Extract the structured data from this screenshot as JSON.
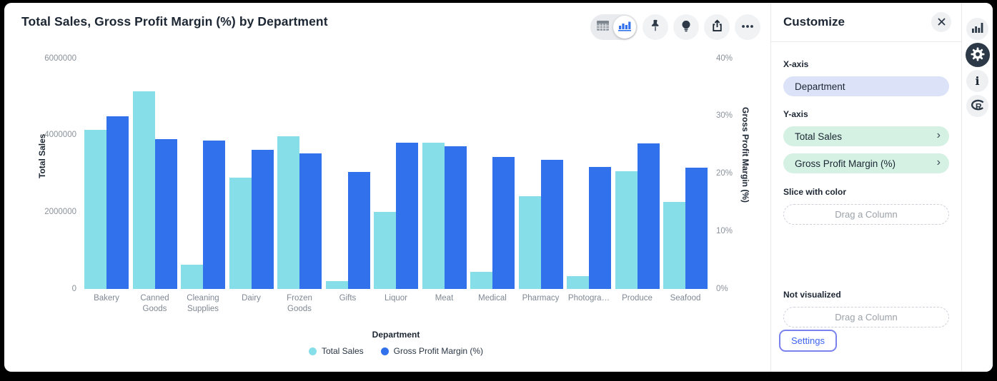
{
  "chart": {
    "title": "Total Sales, Gross Profit Margin (%) by Department",
    "toolbar": {
      "table_toggle_icon": "table-icon",
      "chart_toggle_icon": "bar-chart-icon",
      "selected_view": "chart",
      "buttons": [
        "pin",
        "lightbulb",
        "share",
        "more"
      ]
    }
  },
  "chart_data": {
    "type": "bar",
    "title": "Total Sales, Gross Profit Margin (%) by Department",
    "categories": [
      "Bakery",
      "Canned Goods",
      "Cleaning Supplies",
      "Dairy",
      "Frozen Goods",
      "Gifts",
      "Liquor",
      "Meat",
      "Medical",
      "Pharmacy",
      "Photogra…",
      "Produce",
      "Seafood"
    ],
    "series": [
      {
        "name": "Total Sales",
        "axis": "left",
        "color": "#86dee9",
        "values": [
          4150000,
          5150000,
          630000,
          2900000,
          3970000,
          200000,
          2000000,
          3810000,
          450000,
          2410000,
          340000,
          3060000,
          2270000
        ]
      },
      {
        "name": "Gross Profit Margin (%)",
        "axis": "right",
        "color": "#3172ec",
        "values": [
          30,
          26,
          25.8,
          24.2,
          23.5,
          20.3,
          25.4,
          24.8,
          22.9,
          22.4,
          21.2,
          25.3,
          21.1
        ]
      }
    ],
    "xlabel": "Department",
    "y_left": {
      "label": "Total Sales",
      "ticks": [
        "0",
        "2000000",
        "4000000",
        "6000000"
      ],
      "min": 0,
      "max": 6000000
    },
    "y_right": {
      "label": "Gross Profit Margin (%)",
      "ticks": [
        "0%",
        "10%",
        "20%",
        "30%",
        "40%"
      ],
      "min": 0,
      "max": 40
    },
    "grid": false,
    "legend_position": "bottom"
  },
  "customize": {
    "title": "Customize",
    "close_icon": "close-icon",
    "x_axis_label": "X-axis",
    "x_axis_value": "Department",
    "y_axis_label": "Y-axis",
    "y_axis_values": [
      "Total Sales",
      "Gross Profit Margin (%)"
    ],
    "slice_label": "Slice with color",
    "not_visualized_label": "Not visualized",
    "drop_placeholder": "Drag a Column",
    "settings_label": "Settings",
    "pill_colors": {
      "x": "#dce3f9",
      "y": "#d4f1e3"
    }
  },
  "rail": {
    "items": [
      "chart",
      "settings-gear",
      "info",
      "r-language"
    ],
    "selected": "settings-gear"
  },
  "colors": {
    "accent_blue": "#3172ec",
    "cyan": "#86dee9",
    "dark_icon": "#2d3947",
    "settings_ring": "#7b82ee",
    "settings_text": "#3d63f1"
  }
}
